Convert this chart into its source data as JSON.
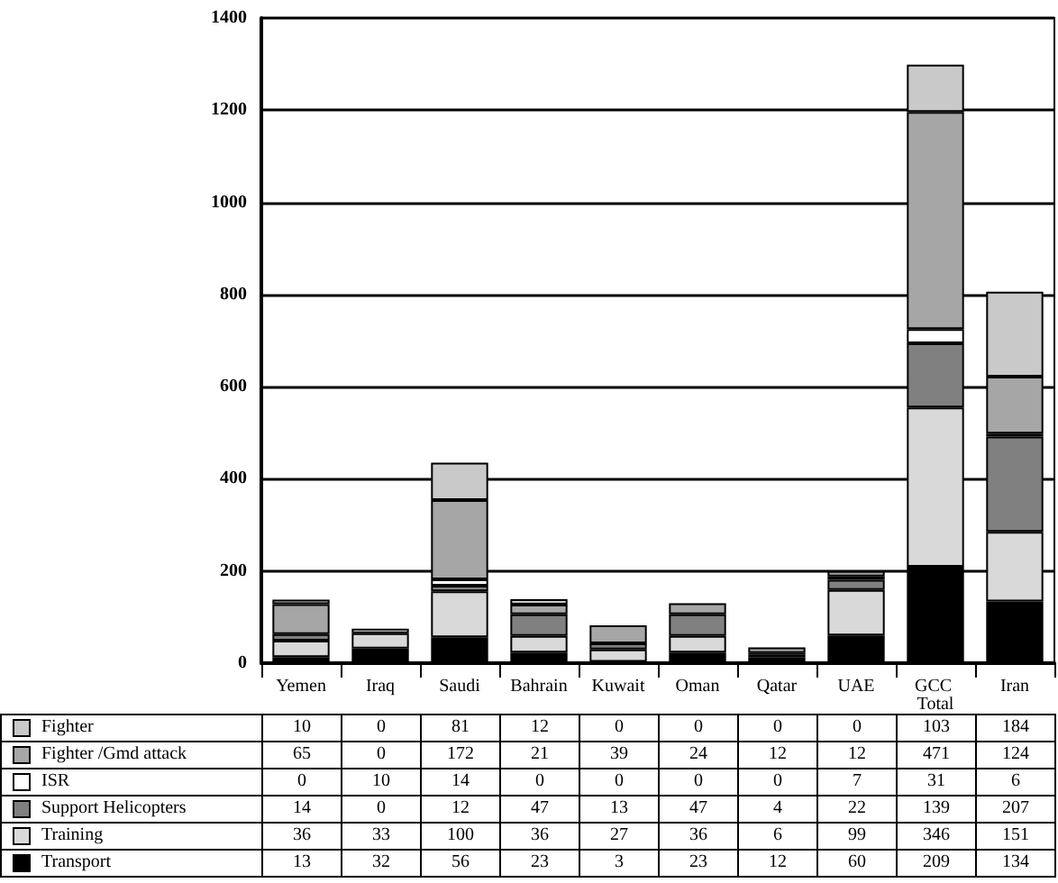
{
  "chart_data": {
    "type": "bar",
    "stacked": true,
    "categories": [
      "Yemen",
      "Iraq",
      "Saudi",
      "Bahrain",
      "Kuwait",
      "Oman",
      "Qatar",
      "UAE",
      "GCC Total",
      "Iran"
    ],
    "ylim": [
      0,
      1400
    ],
    "yticks": [
      0,
      200,
      400,
      600,
      800,
      1000,
      1200,
      1400
    ],
    "grid": "y",
    "legend": "bottom",
    "data_labels": true,
    "series": [
      {
        "name": "Transport",
        "color": "#000000",
        "values": [
          13,
          32,
          56,
          23,
          3,
          23,
          12,
          60,
          209,
          134
        ]
      },
      {
        "name": "Training",
        "color": "#d9d9d9",
        "values": [
          36,
          33,
          100,
          36,
          27,
          36,
          6,
          99,
          346,
          151
        ]
      },
      {
        "name": "Support Helicopters",
        "color": "#808080",
        "values": [
          14,
          0,
          12,
          47,
          13,
          47,
          4,
          22,
          139,
          207
        ]
      },
      {
        "name": "ISR",
        "color": "#ffffff",
        "values": [
          0,
          10,
          14,
          0,
          0,
          0,
          0,
          7,
          31,
          6
        ]
      },
      {
        "name": "Fighter /Gmd attack",
        "color": "#a6a6a6",
        "values": [
          65,
          0,
          172,
          21,
          39,
          24,
          12,
          12,
          471,
          124
        ]
      },
      {
        "name": "Fighter",
        "color": "#c9c9c9",
        "values": [
          10,
          0,
          81,
          12,
          0,
          0,
          0,
          0,
          103,
          184
        ]
      }
    ]
  }
}
